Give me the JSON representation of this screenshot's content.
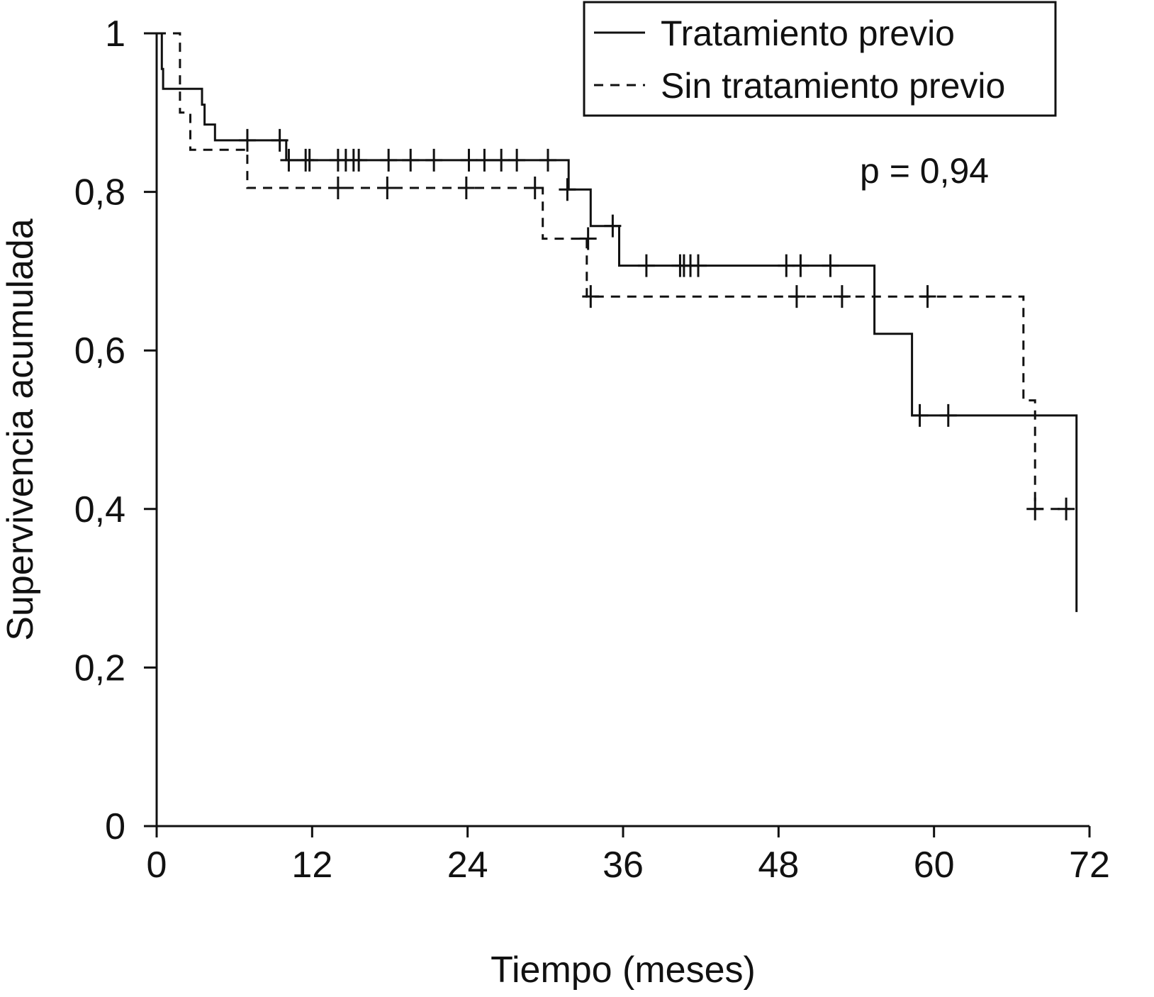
{
  "chart_data": {
    "type": "line",
    "subtype": "kaplan-meier",
    "xlabel": "Tiempo (meses)",
    "ylabel": "Supervivencia acumulada",
    "xlim": [
      0,
      72
    ],
    "ylim": [
      0,
      1
    ],
    "xticks": [
      0,
      12,
      24,
      36,
      48,
      60,
      72
    ],
    "xtick_labels": [
      "0",
      "12",
      "24",
      "36",
      "48",
      "60",
      "72"
    ],
    "yticks": [
      0,
      0.2,
      0.4,
      0.6,
      0.8,
      1
    ],
    "ytick_labels": [
      "0",
      "0,2",
      "0,4",
      "0,6",
      "0,8",
      "1"
    ],
    "grid": false,
    "legend_position": "top-right",
    "annotation": "p = 0,94",
    "series": [
      {
        "name": "Tratamiento previo",
        "style": "solid",
        "color": "#111111",
        "steps": [
          [
            0,
            1.0
          ],
          [
            0.4,
            0.955
          ],
          [
            0.5,
            0.93
          ],
          [
            3.5,
            0.91
          ],
          [
            3.7,
            0.885
          ],
          [
            4.5,
            0.865
          ],
          [
            10.0,
            0.84
          ],
          [
            31.8,
            0.803
          ],
          [
            33.5,
            0.757
          ],
          [
            35.7,
            0.707
          ],
          [
            55.4,
            0.621
          ],
          [
            58.3,
            0.518
          ],
          [
            71.0,
            0.518
          ],
          [
            71.0,
            0.27
          ]
        ],
        "censored": [
          [
            7.0,
            0.865
          ],
          [
            9.5,
            0.865
          ],
          [
            10.2,
            0.84
          ],
          [
            11.5,
            0.84
          ],
          [
            11.8,
            0.84
          ],
          [
            14.0,
            0.84
          ],
          [
            14.6,
            0.84
          ],
          [
            15.2,
            0.84
          ],
          [
            15.6,
            0.84
          ],
          [
            17.9,
            0.84
          ],
          [
            19.6,
            0.84
          ],
          [
            21.4,
            0.84
          ],
          [
            24.1,
            0.84
          ],
          [
            25.3,
            0.84
          ],
          [
            26.6,
            0.84
          ],
          [
            27.8,
            0.84
          ],
          [
            30.2,
            0.84
          ],
          [
            31.7,
            0.803
          ],
          [
            35.2,
            0.757
          ],
          [
            37.8,
            0.707
          ],
          [
            40.4,
            0.707
          ],
          [
            40.7,
            0.707
          ],
          [
            41.2,
            0.707
          ],
          [
            41.8,
            0.707
          ],
          [
            48.6,
            0.707
          ],
          [
            49.7,
            0.707
          ],
          [
            52.0,
            0.707
          ],
          [
            58.9,
            0.518
          ],
          [
            61.1,
            0.518
          ]
        ]
      },
      {
        "name": "Sin tratamiento previo",
        "style": "dashed",
        "color": "#111111",
        "steps": [
          [
            0,
            1.0
          ],
          [
            1.8,
            0.9
          ],
          [
            2.6,
            0.853
          ],
          [
            7.0,
            0.805
          ],
          [
            29.8,
            0.741
          ],
          [
            33.2,
            0.668
          ],
          [
            66.9,
            0.537
          ],
          [
            67.8,
            0.4
          ],
          [
            70.5,
            0.4
          ]
        ],
        "censored": [
          [
            14.0,
            0.805
          ],
          [
            17.8,
            0.805
          ],
          [
            23.9,
            0.805
          ],
          [
            29.2,
            0.805
          ],
          [
            33.3,
            0.741
          ],
          [
            33.5,
            0.668
          ],
          [
            49.4,
            0.668
          ],
          [
            52.9,
            0.668
          ],
          [
            59.5,
            0.668
          ],
          [
            67.8,
            0.4
          ],
          [
            70.2,
            0.4
          ]
        ]
      }
    ]
  }
}
